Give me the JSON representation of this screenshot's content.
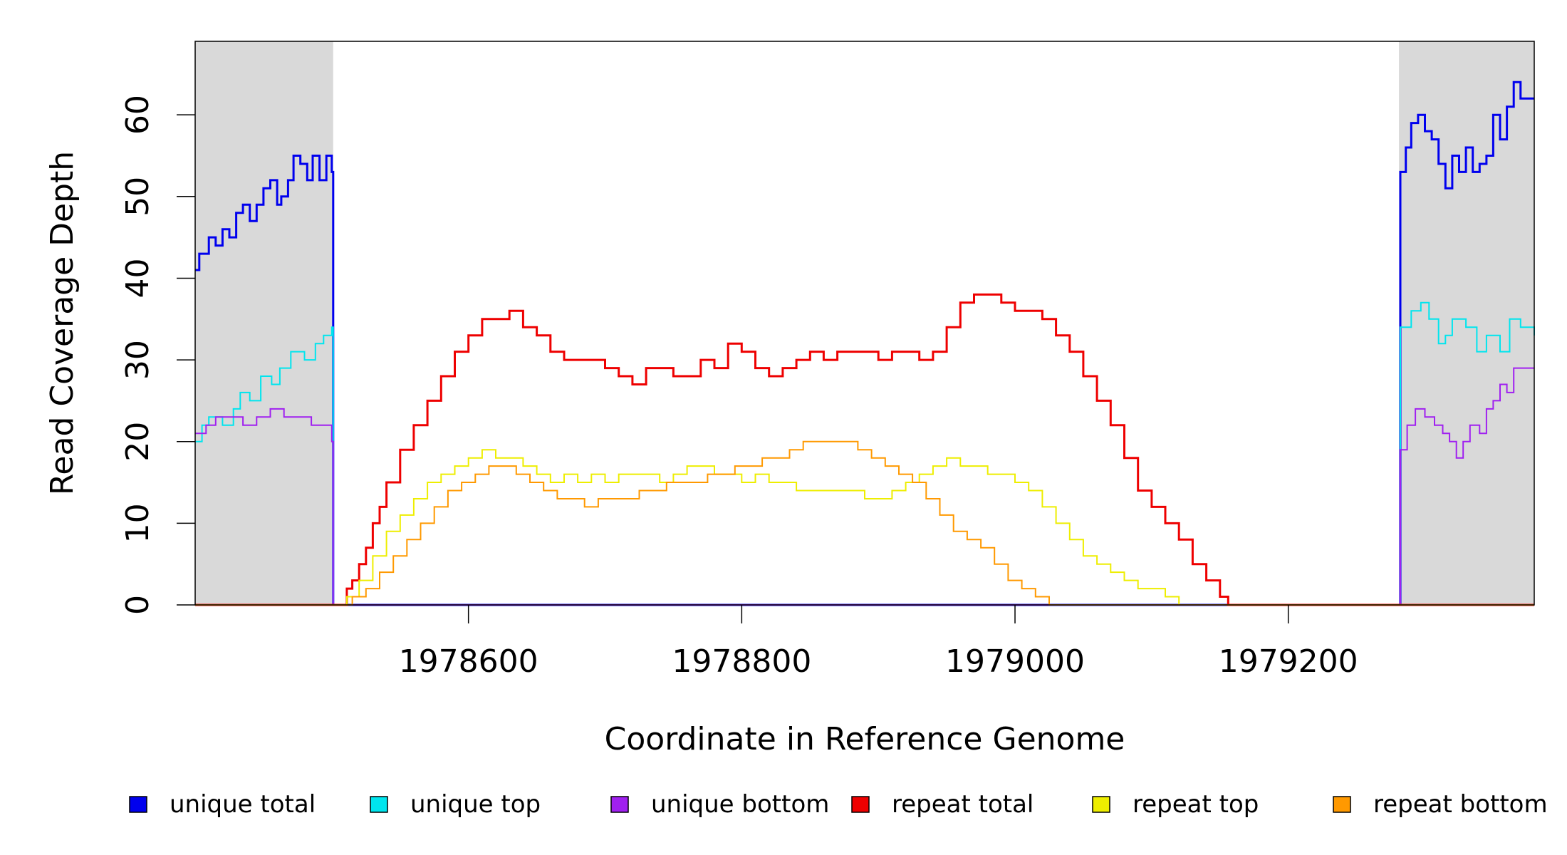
{
  "chart_data": {
    "type": "line",
    "xlabel": "Coordinate in Reference Genome",
    "ylabel": "Read Coverage Depth",
    "xlim": [
      1978400,
      1979380
    ],
    "ylim": [
      0,
      69
    ],
    "x_ticks": [
      1978600,
      1978800,
      1979000,
      1979200
    ],
    "y_ticks": [
      0,
      10,
      20,
      30,
      40,
      50,
      60
    ],
    "shaded_regions": [
      [
        1978400,
        1978501
      ],
      [
        1979281,
        1979380
      ]
    ],
    "shade_color": "#d9d9d9",
    "legend_position": "bottom",
    "series": [
      {
        "name": "unique total",
        "color": "#0000ee",
        "width": 3,
        "points": [
          [
            1978400,
            41
          ],
          [
            1978403,
            43
          ],
          [
            1978410,
            45
          ],
          [
            1978415,
            44
          ],
          [
            1978420,
            46
          ],
          [
            1978425,
            45
          ],
          [
            1978430,
            48
          ],
          [
            1978435,
            49
          ],
          [
            1978440,
            47
          ],
          [
            1978445,
            49
          ],
          [
            1978450,
            51
          ],
          [
            1978455,
            52
          ],
          [
            1978460,
            49
          ],
          [
            1978463,
            50
          ],
          [
            1978468,
            52
          ],
          [
            1978472,
            55
          ],
          [
            1978477,
            54
          ],
          [
            1978482,
            52
          ],
          [
            1978486,
            55
          ],
          [
            1978491,
            52
          ],
          [
            1978496,
            55
          ],
          [
            1978500,
            53
          ],
          [
            1978501,
            0
          ],
          [
            1979281,
            0
          ],
          [
            1979282,
            53
          ],
          [
            1979286,
            56
          ],
          [
            1979290,
            59
          ],
          [
            1979295,
            60
          ],
          [
            1979300,
            58
          ],
          [
            1979305,
            57
          ],
          [
            1979310,
            54
          ],
          [
            1979315,
            51
          ],
          [
            1979320,
            55
          ],
          [
            1979325,
            53
          ],
          [
            1979330,
            56
          ],
          [
            1979335,
            53
          ],
          [
            1979340,
            54
          ],
          [
            1979345,
            55
          ],
          [
            1979350,
            60
          ],
          [
            1979355,
            57
          ],
          [
            1979360,
            61
          ],
          [
            1979365,
            64
          ],
          [
            1979370,
            62
          ],
          [
            1979373,
            62
          ],
          [
            1979380,
            62
          ]
        ]
      },
      {
        "name": "unique top",
        "color": "#00e5ee",
        "width": 2,
        "points": [
          [
            1978400,
            20
          ],
          [
            1978405,
            22
          ],
          [
            1978410,
            23
          ],
          [
            1978420,
            22
          ],
          [
            1978428,
            24
          ],
          [
            1978433,
            26
          ],
          [
            1978440,
            25
          ],
          [
            1978448,
            28
          ],
          [
            1978456,
            27
          ],
          [
            1978462,
            29
          ],
          [
            1978470,
            31
          ],
          [
            1978480,
            30
          ],
          [
            1978488,
            32
          ],
          [
            1978494,
            33
          ],
          [
            1978500,
            34
          ],
          [
            1978501,
            0
          ],
          [
            1979281,
            0
          ],
          [
            1979282,
            34
          ],
          [
            1979290,
            36
          ],
          [
            1979297,
            37
          ],
          [
            1979303,
            35
          ],
          [
            1979310,
            32
          ],
          [
            1979315,
            33
          ],
          [
            1979320,
            35
          ],
          [
            1979330,
            34
          ],
          [
            1979338,
            31
          ],
          [
            1979345,
            33
          ],
          [
            1979355,
            31
          ],
          [
            1979362,
            35
          ],
          [
            1979370,
            34
          ],
          [
            1979380,
            33
          ]
        ]
      },
      {
        "name": "unique bottom",
        "color": "#a020f0",
        "width": 2,
        "points": [
          [
            1978400,
            21
          ],
          [
            1978408,
            22
          ],
          [
            1978415,
            23
          ],
          [
            1978425,
            23
          ],
          [
            1978435,
            22
          ],
          [
            1978445,
            23
          ],
          [
            1978455,
            24
          ],
          [
            1978465,
            23
          ],
          [
            1978475,
            23
          ],
          [
            1978485,
            22
          ],
          [
            1978492,
            22
          ],
          [
            1978500,
            20
          ],
          [
            1978501,
            0
          ],
          [
            1979281,
            0
          ],
          [
            1979282,
            19
          ],
          [
            1979287,
            22
          ],
          [
            1979293,
            24
          ],
          [
            1979300,
            23
          ],
          [
            1979307,
            22
          ],
          [
            1979313,
            21
          ],
          [
            1979318,
            20
          ],
          [
            1979323,
            18
          ],
          [
            1979328,
            20
          ],
          [
            1979333,
            22
          ],
          [
            1979340,
            21
          ],
          [
            1979345,
            24
          ],
          [
            1979350,
            25
          ],
          [
            1979355,
            27
          ],
          [
            1979360,
            26
          ],
          [
            1979365,
            29
          ],
          [
            1979372,
            29
          ],
          [
            1979380,
            29
          ]
        ]
      },
      {
        "name": "repeat total",
        "color": "#ee0000",
        "width": 3,
        "points": [
          [
            1978400,
            0
          ],
          [
            1978510,
            0
          ],
          [
            1978511,
            2
          ],
          [
            1978515,
            3
          ],
          [
            1978520,
            5
          ],
          [
            1978525,
            7
          ],
          [
            1978530,
            10
          ],
          [
            1978535,
            12
          ],
          [
            1978540,
            15
          ],
          [
            1978550,
            19
          ],
          [
            1978560,
            22
          ],
          [
            1978570,
            25
          ],
          [
            1978580,
            28
          ],
          [
            1978590,
            31
          ],
          [
            1978600,
            33
          ],
          [
            1978610,
            35
          ],
          [
            1978620,
            35
          ],
          [
            1978630,
            36
          ],
          [
            1978640,
            34
          ],
          [
            1978650,
            33
          ],
          [
            1978660,
            31
          ],
          [
            1978670,
            30
          ],
          [
            1978680,
            30
          ],
          [
            1978690,
            30
          ],
          [
            1978700,
            29
          ],
          [
            1978710,
            28
          ],
          [
            1978720,
            27
          ],
          [
            1978730,
            29
          ],
          [
            1978740,
            29
          ],
          [
            1978750,
            28
          ],
          [
            1978760,
            28
          ],
          [
            1978770,
            30
          ],
          [
            1978780,
            29
          ],
          [
            1978790,
            32
          ],
          [
            1978800,
            31
          ],
          [
            1978810,
            29
          ],
          [
            1978820,
            28
          ],
          [
            1978830,
            29
          ],
          [
            1978840,
            30
          ],
          [
            1978850,
            31
          ],
          [
            1978860,
            30
          ],
          [
            1978870,
            31
          ],
          [
            1978880,
            31
          ],
          [
            1978890,
            31
          ],
          [
            1978900,
            30
          ],
          [
            1978910,
            31
          ],
          [
            1978920,
            31
          ],
          [
            1978930,
            30
          ],
          [
            1978940,
            31
          ],
          [
            1978950,
            34
          ],
          [
            1978960,
            37
          ],
          [
            1978970,
            38
          ],
          [
            1978980,
            38
          ],
          [
            1978990,
            37
          ],
          [
            1979000,
            36
          ],
          [
            1979010,
            36
          ],
          [
            1979020,
            35
          ],
          [
            1979030,
            33
          ],
          [
            1979040,
            31
          ],
          [
            1979050,
            28
          ],
          [
            1979060,
            25
          ],
          [
            1979070,
            22
          ],
          [
            1979080,
            18
          ],
          [
            1979090,
            14
          ],
          [
            1979100,
            12
          ],
          [
            1979110,
            10
          ],
          [
            1979120,
            8
          ],
          [
            1979130,
            5
          ],
          [
            1979140,
            3
          ],
          [
            1979150,
            1
          ],
          [
            1979155,
            1
          ],
          [
            1979156,
            0
          ],
          [
            1979380,
            0
          ]
        ]
      },
      {
        "name": "repeat top",
        "color": "#eeee00",
        "width": 2,
        "points": [
          [
            1978400,
            0
          ],
          [
            1978510,
            0
          ],
          [
            1978511,
            1
          ],
          [
            1978520,
            3
          ],
          [
            1978530,
            6
          ],
          [
            1978540,
            9
          ],
          [
            1978550,
            11
          ],
          [
            1978560,
            13
          ],
          [
            1978570,
            15
          ],
          [
            1978580,
            16
          ],
          [
            1978590,
            17
          ],
          [
            1978600,
            18
          ],
          [
            1978610,
            19
          ],
          [
            1978620,
            18
          ],
          [
            1978630,
            18
          ],
          [
            1978640,
            17
          ],
          [
            1978650,
            16
          ],
          [
            1978660,
            15
          ],
          [
            1978670,
            16
          ],
          [
            1978680,
            15
          ],
          [
            1978690,
            16
          ],
          [
            1978700,
            15
          ],
          [
            1978710,
            16
          ],
          [
            1978720,
            16
          ],
          [
            1978730,
            16
          ],
          [
            1978740,
            15
          ],
          [
            1978750,
            16
          ],
          [
            1978760,
            17
          ],
          [
            1978770,
            17
          ],
          [
            1978780,
            16
          ],
          [
            1978790,
            16
          ],
          [
            1978800,
            15
          ],
          [
            1978810,
            16
          ],
          [
            1978820,
            15
          ],
          [
            1978830,
            15
          ],
          [
            1978840,
            14
          ],
          [
            1978850,
            14
          ],
          [
            1978860,
            14
          ],
          [
            1978870,
            14
          ],
          [
            1978880,
            14
          ],
          [
            1978890,
            13
          ],
          [
            1978900,
            13
          ],
          [
            1978910,
            14
          ],
          [
            1978920,
            15
          ],
          [
            1978930,
            16
          ],
          [
            1978940,
            17
          ],
          [
            1978950,
            18
          ],
          [
            1978960,
            17
          ],
          [
            1978970,
            17
          ],
          [
            1978980,
            16
          ],
          [
            1978990,
            16
          ],
          [
            1979000,
            15
          ],
          [
            1979010,
            14
          ],
          [
            1979020,
            12
          ],
          [
            1979030,
            10
          ],
          [
            1979040,
            8
          ],
          [
            1979050,
            6
          ],
          [
            1979060,
            5
          ],
          [
            1979070,
            4
          ],
          [
            1979080,
            3
          ],
          [
            1979090,
            2
          ],
          [
            1979100,
            2
          ],
          [
            1979110,
            1
          ],
          [
            1979120,
            0
          ],
          [
            1979380,
            0
          ]
        ]
      },
      {
        "name": "repeat bottom",
        "color": "#ff9900",
        "width": 2,
        "points": [
          [
            1978400,
            0
          ],
          [
            1978510,
            0
          ],
          [
            1978515,
            1
          ],
          [
            1978525,
            2
          ],
          [
            1978535,
            4
          ],
          [
            1978545,
            6
          ],
          [
            1978555,
            8
          ],
          [
            1978565,
            10
          ],
          [
            1978575,
            12
          ],
          [
            1978585,
            14
          ],
          [
            1978595,
            15
          ],
          [
            1978605,
            16
          ],
          [
            1978615,
            17
          ],
          [
            1978625,
            17
          ],
          [
            1978635,
            16
          ],
          [
            1978645,
            15
          ],
          [
            1978655,
            14
          ],
          [
            1978665,
            13
          ],
          [
            1978675,
            13
          ],
          [
            1978685,
            12
          ],
          [
            1978695,
            13
          ],
          [
            1978705,
            13
          ],
          [
            1978715,
            13
          ],
          [
            1978725,
            14
          ],
          [
            1978735,
            14
          ],
          [
            1978745,
            15
          ],
          [
            1978755,
            15
          ],
          [
            1978765,
            15
          ],
          [
            1978775,
            16
          ],
          [
            1978785,
            16
          ],
          [
            1978795,
            17
          ],
          [
            1978805,
            17
          ],
          [
            1978815,
            18
          ],
          [
            1978825,
            18
          ],
          [
            1978835,
            19
          ],
          [
            1978845,
            20
          ],
          [
            1978855,
            20
          ],
          [
            1978865,
            20
          ],
          [
            1978875,
            20
          ],
          [
            1978885,
            19
          ],
          [
            1978895,
            18
          ],
          [
            1978905,
            17
          ],
          [
            1978915,
            16
          ],
          [
            1978925,
            15
          ],
          [
            1978935,
            13
          ],
          [
            1978945,
            11
          ],
          [
            1978955,
            9
          ],
          [
            1978965,
            8
          ],
          [
            1978975,
            7
          ],
          [
            1978985,
            5
          ],
          [
            1978995,
            3
          ],
          [
            1979005,
            2
          ],
          [
            1979015,
            1
          ],
          [
            1979025,
            0
          ],
          [
            1979380,
            0
          ]
        ]
      }
    ]
  }
}
